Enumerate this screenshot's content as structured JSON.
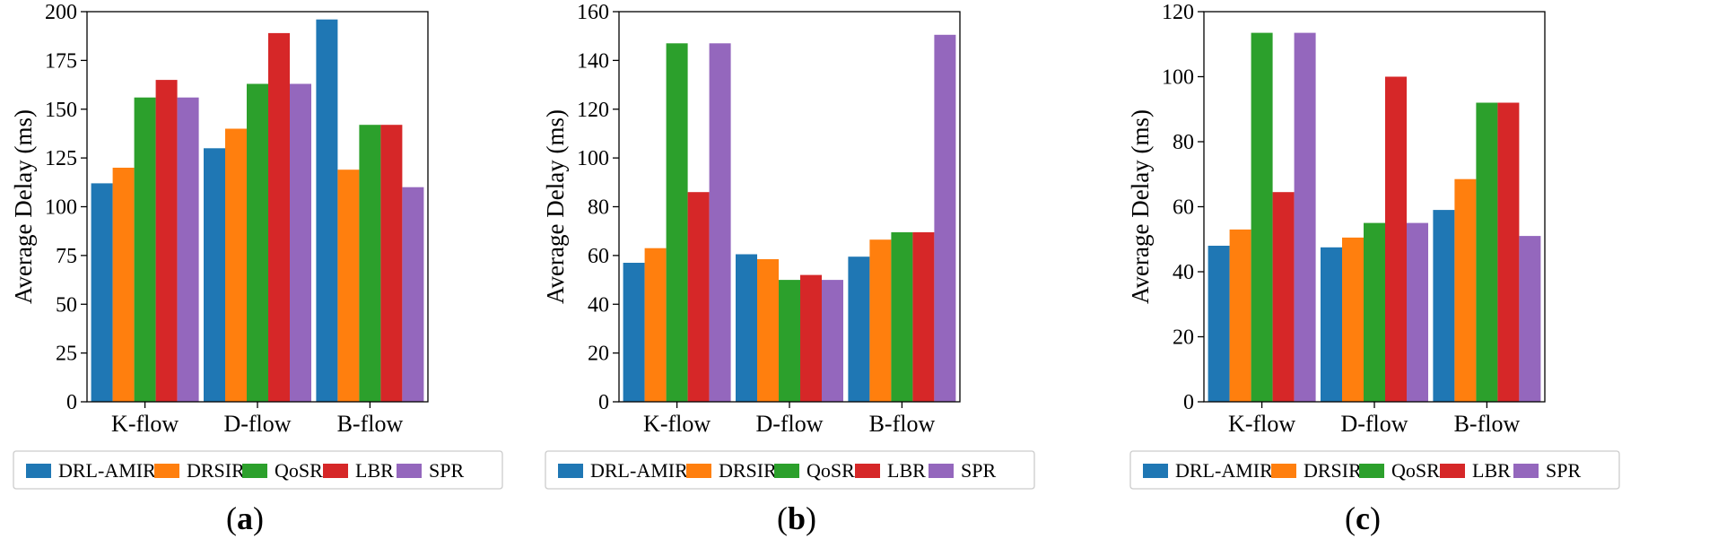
{
  "legend_colors": {
    "DRL-AMIR": "#1f77b4",
    "DRSIR": "#ff7f0e",
    "QoSR": "#2ca02c",
    "LBR": "#d62728",
    "SPR": "#9467bd"
  },
  "chart_data": [
    {
      "type": "bar",
      "panel_label": "a",
      "ylabel": "Average Delay (ms)",
      "ylim": [
        0,
        200
      ],
      "yticks": [
        0,
        25,
        50,
        75,
        100,
        125,
        150,
        175,
        200
      ],
      "categories": [
        "K-flow",
        "D-flow",
        "B-flow"
      ],
      "legend_position": "bottom",
      "grid": false,
      "series": [
        {
          "name": "DRL-AMIR",
          "color": "#1f77b4",
          "values": [
            112,
            130,
            196
          ]
        },
        {
          "name": "DRSIR",
          "color": "#ff7f0e",
          "values": [
            120,
            140,
            119
          ]
        },
        {
          "name": "QoSR",
          "color": "#2ca02c",
          "values": [
            156,
            163,
            142
          ]
        },
        {
          "name": "LBR",
          "color": "#d62728",
          "values": [
            165,
            189,
            142
          ]
        },
        {
          "name": "SPR",
          "color": "#9467bd",
          "values": [
            156,
            163,
            110
          ]
        }
      ]
    },
    {
      "type": "bar",
      "panel_label": "b",
      "ylabel": "Average Delay (ms)",
      "ylim": [
        0,
        160
      ],
      "yticks": [
        0,
        20,
        40,
        60,
        80,
        100,
        120,
        140,
        160
      ],
      "categories": [
        "K-flow",
        "D-flow",
        "B-flow"
      ],
      "legend_position": "bottom",
      "grid": false,
      "series": [
        {
          "name": "DRL-AMIR",
          "color": "#1f77b4",
          "values": [
            57,
            60.5,
            59.5
          ]
        },
        {
          "name": "DRSIR",
          "color": "#ff7f0e",
          "values": [
            63,
            58.5,
            66.5
          ]
        },
        {
          "name": "QoSR",
          "color": "#2ca02c",
          "values": [
            147,
            50,
            69.5
          ]
        },
        {
          "name": "LBR",
          "color": "#d62728",
          "values": [
            86,
            52,
            69.5
          ]
        },
        {
          "name": "SPR",
          "color": "#9467bd",
          "values": [
            147,
            50,
            150.5
          ]
        }
      ]
    },
    {
      "type": "bar",
      "panel_label": "c",
      "ylabel": "Average Delay (ms)",
      "ylim": [
        0,
        120
      ],
      "yticks": [
        0,
        20,
        40,
        60,
        80,
        100,
        120
      ],
      "categories": [
        "K-flow",
        "D-flow",
        "B-flow"
      ],
      "legend_position": "bottom",
      "grid": false,
      "series": [
        {
          "name": "DRL-AMIR",
          "color": "#1f77b4",
          "values": [
            48,
            47.5,
            59
          ]
        },
        {
          "name": "DRSIR",
          "color": "#ff7f0e",
          "values": [
            53,
            50.5,
            68.5
          ]
        },
        {
          "name": "QoSR",
          "color": "#2ca02c",
          "values": [
            113.5,
            55,
            92
          ]
        },
        {
          "name": "LBR",
          "color": "#d62728",
          "values": [
            64.5,
            100,
            92
          ]
        },
        {
          "name": "SPR",
          "color": "#9467bd",
          "values": [
            113.5,
            55,
            51
          ]
        }
      ]
    }
  ]
}
